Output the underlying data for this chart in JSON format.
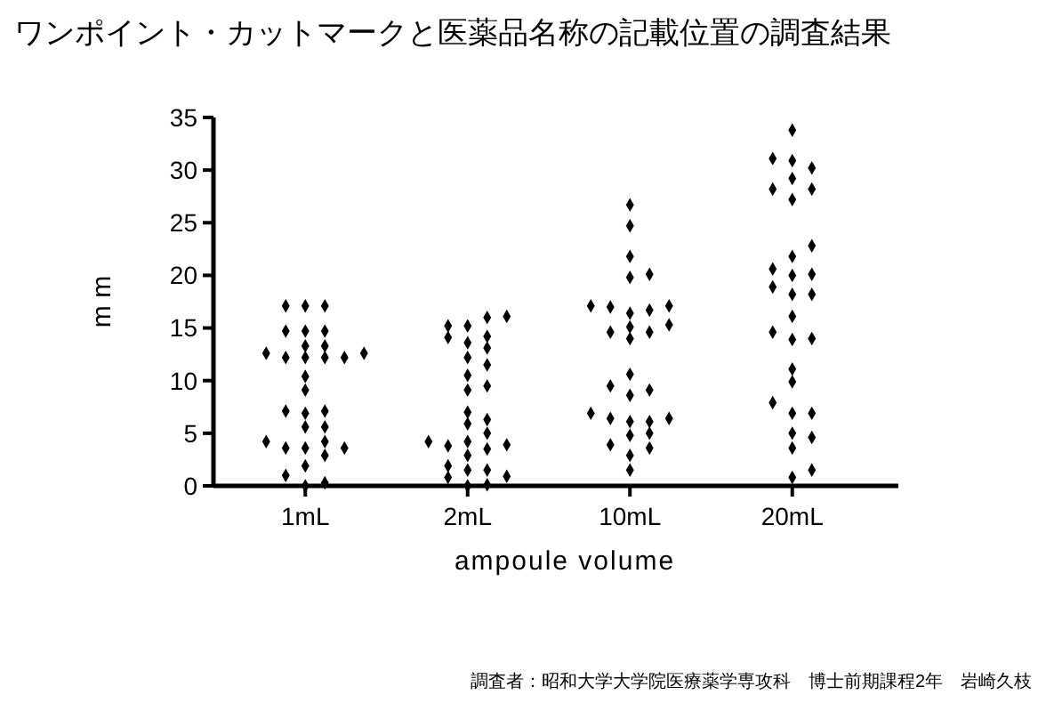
{
  "chart_data": {
    "type": "scatter",
    "title": "ワンポイント・カットマークと医薬品名称の記載位置の調査結果",
    "xlabel": "ampoule volume",
    "ylabel": "m m",
    "categories": [
      "1mL",
      "2mL",
      "10mL",
      "20mL"
    ],
    "ylim": [
      0,
      35
    ],
    "yticks": [
      0,
      5,
      10,
      15,
      20,
      25,
      30,
      35
    ],
    "marker": "diamond",
    "grid": false,
    "annotations": [
      "調査者：昭和大学大学院医療薬学専攻科　博士前期課程2年　岩崎久枝"
    ],
    "series": [
      {
        "color": "#000000",
        "x": [
          "1mL",
          "1mL",
          "1mL",
          "1mL",
          "1mL",
          "1mL",
          "1mL",
          "1mL",
          "1mL",
          "1mL",
          "1mL",
          "1mL",
          "1mL",
          "1mL",
          "1mL",
          "1mL",
          "1mL",
          "1mL",
          "1mL",
          "1mL",
          "1mL",
          "1mL",
          "1mL",
          "1mL",
          "1mL",
          "1mL",
          "1mL",
          "1mL",
          "1mL",
          "1mL",
          "1mL"
        ],
        "values": [
          17.1,
          17.1,
          17.1,
          14.7,
          14.7,
          14.7,
          13.3,
          13.3,
          12.6,
          12.6,
          12.2,
          12.2,
          12.2,
          12.2,
          10.4,
          9.1,
          7.1,
          7.1,
          6.9,
          5.6,
          5.6,
          4.2,
          4.2,
          3.6,
          3.6,
          3.6,
          2.9,
          1.9,
          1.0,
          0.3,
          0
        ]
      },
      {
        "color": "#000000",
        "x": [
          "2mL",
          "2mL",
          "2mL",
          "2mL",
          "2mL",
          "2mL",
          "2mL",
          "2mL",
          "2mL",
          "2mL",
          "2mL",
          "2mL",
          "2mL",
          "2mL",
          "2mL",
          "2mL",
          "2mL",
          "2mL",
          "2mL",
          "2mL",
          "2mL",
          "2mL",
          "2mL",
          "2mL",
          "2mL",
          "2mL",
          "2mL",
          "2mL",
          "2mL",
          "2mL"
        ],
        "values": [
          16.1,
          16.0,
          15.2,
          15.2,
          14.2,
          14.1,
          13.6,
          13.1,
          12.2,
          11.5,
          10.5,
          9.5,
          9.1,
          7.0,
          6.3,
          5.9,
          5.0,
          4.2,
          4.2,
          3.9,
          3.8,
          3.5,
          2.9,
          1.9,
          1.5,
          1.5,
          0.9,
          0.8,
          0.1,
          0
        ]
      },
      {
        "color": "#000000",
        "x": [
          "10mL",
          "10mL",
          "10mL",
          "10mL",
          "10mL",
          "10mL",
          "10mL",
          "10mL",
          "10mL",
          "10mL",
          "10mL",
          "10mL",
          "10mL",
          "10mL",
          "10mL",
          "10mL",
          "10mL",
          "10mL",
          "10mL",
          "10mL",
          "10mL",
          "10mL",
          "10mL",
          "10mL",
          "10mL",
          "10mL",
          "10mL",
          "10mL",
          "10mL",
          "10mL"
        ],
        "values": [
          26.7,
          24.7,
          21.8,
          20.1,
          19.8,
          17.1,
          17.1,
          17.0,
          16.7,
          16.4,
          15.3,
          15.1,
          14.6,
          14.6,
          14.0,
          10.6,
          9.5,
          9.1,
          8.6,
          6.9,
          6.4,
          6.4,
          6.1,
          6.1,
          5.0,
          4.8,
          3.9,
          3.6,
          2.9,
          1.5
        ]
      },
      {
        "color": "#000000",
        "x": [
          "20mL",
          "20mL",
          "20mL",
          "20mL",
          "20mL",
          "20mL",
          "20mL",
          "20mL",
          "20mL",
          "20mL",
          "20mL",
          "20mL",
          "20mL",
          "20mL",
          "20mL",
          "20mL",
          "20mL",
          "20mL",
          "20mL",
          "20mL",
          "20mL",
          "20mL",
          "20mL",
          "20mL",
          "20mL",
          "20mL",
          "20mL",
          "20mL",
          "20mL",
          "20mL"
        ],
        "values": [
          33.8,
          31.1,
          30.9,
          30.2,
          29.2,
          28.2,
          28.2,
          27.2,
          22.8,
          21.8,
          20.6,
          20.1,
          20.0,
          18.9,
          18.2,
          18.2,
          16.1,
          14.6,
          14.0,
          13.9,
          11.1,
          9.9,
          7.9,
          6.9,
          6.9,
          5.0,
          4.6,
          3.6,
          1.5,
          0.8
        ]
      }
    ]
  }
}
